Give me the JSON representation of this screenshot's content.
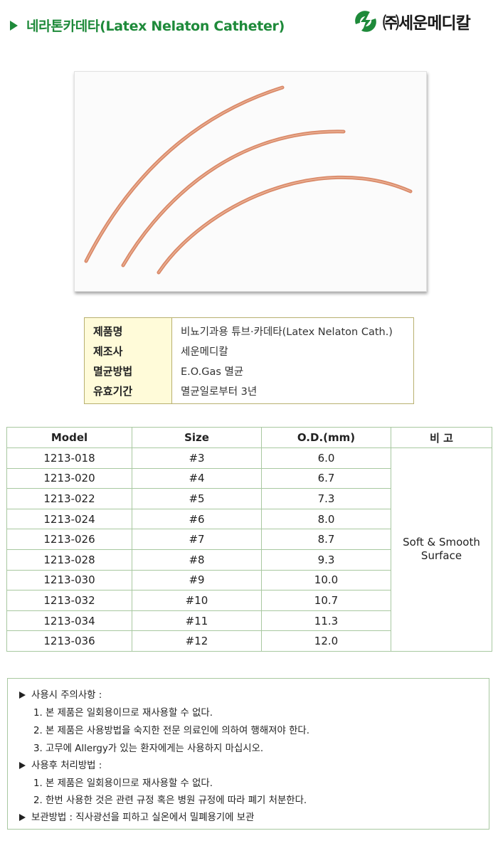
{
  "header": {
    "title": "네라톤카데타(Latex Nelaton Catheter)",
    "logo_text": "㈜세운메디칼",
    "brand_color": "#1e8a3a"
  },
  "photo": {
    "alt": "Latex Nelaton Catheter product photo"
  },
  "info_table": [
    {
      "label": "제품명",
      "value": "비뇨기과용 튜브·카데타(Latex Nelaton Cath.)"
    },
    {
      "label": "제조사",
      "value": "세운메디칼"
    },
    {
      "label": "멸균방법",
      "value": "E.O.Gas 멸균"
    },
    {
      "label": "유효기간",
      "value": "멸균일로부터 3년"
    }
  ],
  "spec_table": {
    "headers": [
      "Model",
      "Size",
      "O.D.(mm)",
      "비 고"
    ],
    "rows": [
      [
        "1213-018",
        "#3",
        "6.0"
      ],
      [
        "1213-020",
        "#4",
        "6.7"
      ],
      [
        "1213-022",
        "#5",
        "7.3"
      ],
      [
        "1213-024",
        "#6",
        "8.0"
      ],
      [
        "1213-026",
        "#7",
        "8.7"
      ],
      [
        "1213-028",
        "#8",
        "9.3"
      ],
      [
        "1213-030",
        "#9",
        "10.0"
      ],
      [
        "1213-032",
        "#10",
        "10.7"
      ],
      [
        "1213-034",
        "#11",
        "11.3"
      ],
      [
        "1213-036",
        "#12",
        "12.0"
      ]
    ],
    "remark": [
      "Soft & Smooth",
      "Surface"
    ]
  },
  "notes": {
    "usage_title": "사용시 주의사항 :",
    "usage_items": [
      "1. 본 제품은 일회용이므로 재사용할 수 없다.",
      "2. 본 제품은 사용방법을 숙지한 전문 의료인에 의하여 행해져야 한다.",
      "3. 고무에 Allergy가 있는 환자에게는 사용하지 마십시오."
    ],
    "disposal_title": "사용후 처리방법 :",
    "disposal_items": [
      "1. 본 제품은 일회용이므로 재사용할 수 없다.",
      "2. 한번 사용한 것은 관련 규정 혹은 병원 규정에 따라 폐기 처분한다."
    ],
    "storage": "보관방법 : 직사광선을 피하고 실온에서 밀폐용기에 보관"
  }
}
